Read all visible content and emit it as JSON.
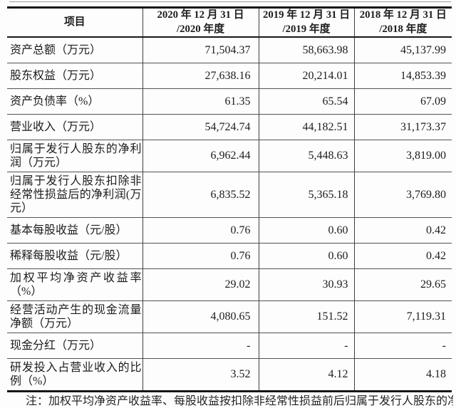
{
  "table": {
    "columns": [
      "项目",
      "2020 年 12 月 31 日\n/2020 年度",
      "2019 年 12 月 31 日\n/2019 年度",
      "2018 年 12 月 31 日\n/2018 年度"
    ],
    "rows": [
      {
        "label": "资产总额（万元）",
        "values": [
          "71,504.37",
          "58,663.98",
          "45,137.99"
        ]
      },
      {
        "label": "股东权益（万元）",
        "values": [
          "27,638.16",
          "20,214.01",
          "14,853.39"
        ]
      },
      {
        "label": "资产负债率（%）",
        "values": [
          "61.35",
          "65.54",
          "67.09"
        ]
      },
      {
        "label": "营业收入（万元）",
        "values": [
          "54,724.74",
          "44,182.51",
          "31,173.37"
        ]
      },
      {
        "label": "归属于发行人股东的净利润（万元）",
        "values": [
          "6,962.44",
          "5,448.63",
          "3,819.00"
        ]
      },
      {
        "label": "归属于发行人股东扣除非经常性损益后的净利润(万元）",
        "values": [
          "6,835.52",
          "5,365.18",
          "3,769.80"
        ]
      },
      {
        "label": "基本每股收益（元/股）",
        "values": [
          "0.76",
          "0.60",
          "0.42"
        ]
      },
      {
        "label": "稀释每股收益（元/股）",
        "values": [
          "0.76",
          "0.60",
          "0.42"
        ]
      },
      {
        "label": "加权平均净资产收益率（%）",
        "values": [
          "29.02",
          "30.93",
          "29.65"
        ]
      },
      {
        "label": "经营活动产生的现金流量净额（万元）",
        "values": [
          "4,080.65",
          "151.52",
          "7,119.31"
        ]
      },
      {
        "label": "现金分红（万元）",
        "values": [
          "-",
          "-",
          "-"
        ]
      },
      {
        "label": "研发投入占营业收入的比例（%）",
        "values": [
          "3.52",
          "4.12",
          "4.18"
        ]
      }
    ]
  },
  "footnote": "注：加权平均净资产收益率、每股收益按扣除非经常性损益前后归属于发行人股东的净利润中较低者计算"
}
